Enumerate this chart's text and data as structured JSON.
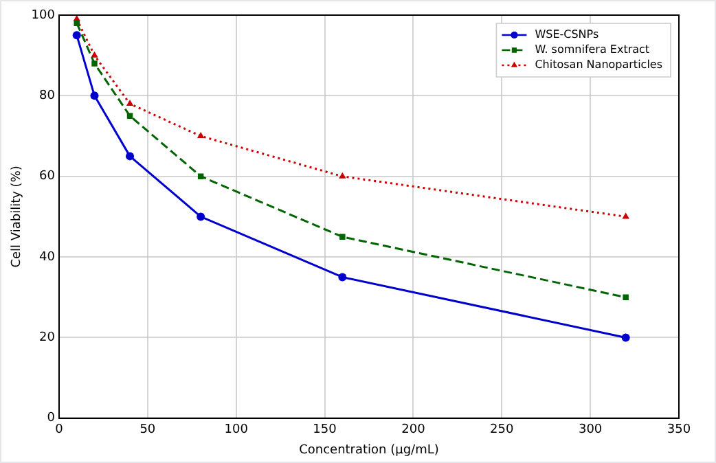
{
  "chart_data": {
    "type": "line",
    "xlabel": "Concentration (µg/mL)",
    "ylabel": "Cell Viability (%)",
    "x": [
      10,
      20,
      40,
      80,
      160,
      320
    ],
    "series": [
      {
        "name": "WSE-CSNPs",
        "color": "#0000cc",
        "values": [
          95,
          80,
          65,
          50,
          35,
          20
        ],
        "marker": "circle",
        "line_style": "solid"
      },
      {
        "name": "W. somnifera Extract",
        "color": "#006400",
        "values": [
          98,
          88,
          75,
          60,
          45,
          30
        ],
        "marker": "square",
        "line_style": "dashed"
      },
      {
        "name": "Chitosan Nanoparticles",
        "color": "#cc0000",
        "values": [
          99,
          90,
          78,
          70,
          60,
          50
        ],
        "marker": "triangle",
        "line_style": "dotted"
      }
    ],
    "xlim": [
      0,
      350
    ],
    "xticks": [
      0,
      50,
      100,
      150,
      200,
      250,
      300,
      350
    ],
    "ylim": [
      0,
      100
    ],
    "yticks": [
      0,
      20,
      40,
      60,
      80,
      100
    ],
    "grid": true,
    "legend": "top right"
  }
}
